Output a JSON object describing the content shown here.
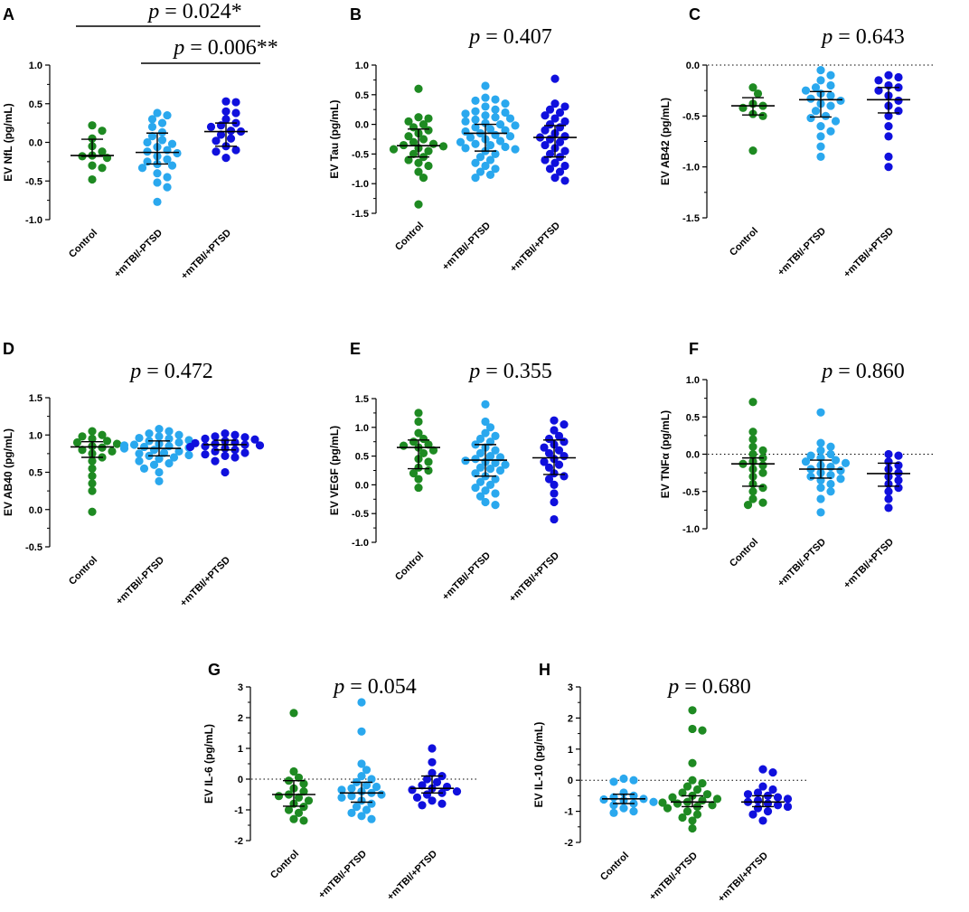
{
  "colors": {
    "control": "#1e8a22",
    "no_ptsd": "#2aa8ee",
    "ptsd": "#1010dd"
  },
  "chart_data": [
    {
      "panel": "A",
      "type": "scatter",
      "title": "",
      "ylabel": "EV NfL (pg/mL)",
      "ylim": [
        -1.0,
        1.0
      ],
      "ticks": [
        "1.0",
        "0.5",
        "0.0",
        "-0.5",
        "-1.0"
      ],
      "tick_values": [
        1.0,
        0.5,
        0.0,
        -0.5,
        -1.0
      ],
      "zero_line": false,
      "categories": [
        "Control",
        "+mTBI/-PTSD",
        "+mTBI/+PTSD"
      ],
      "annotations": [
        {
          "text": "p = 0.024*",
          "from": 0,
          "to": 2
        },
        {
          "text": "p = 0.006**",
          "from": 1,
          "to": 2
        }
      ],
      "summary": [
        {
          "median": -0.17,
          "q1": -0.18,
          "q3": 0.04
        },
        {
          "median": -0.13,
          "q1": -0.28,
          "q3": 0.12
        },
        {
          "median": 0.14,
          "q1": -0.05,
          "q3": 0.25
        }
      ],
      "series": [
        {
          "name": "Control",
          "color": "control",
          "values": [
            0.22,
            0.15,
            0.05,
            -0.05,
            -0.12,
            -0.17,
            -0.18,
            -0.2,
            -0.3,
            -0.33,
            -0.48
          ]
        },
        {
          "name": "+mTBI/-PTSD",
          "color": "no_ptsd",
          "values": [
            0.38,
            0.35,
            0.3,
            0.25,
            0.2,
            0.13,
            0.08,
            0.03,
            0.0,
            -0.02,
            -0.06,
            -0.1,
            -0.12,
            -0.14,
            -0.18,
            -0.22,
            -0.25,
            -0.28,
            -0.3,
            -0.33,
            -0.4,
            -0.45,
            -0.52,
            -0.58,
            -0.77
          ]
        },
        {
          "name": "+mTBI/+PTSD",
          "color": "ptsd",
          "values": [
            0.53,
            0.52,
            0.4,
            0.38,
            0.3,
            0.25,
            0.22,
            0.2,
            0.15,
            0.14,
            0.1,
            0.05,
            0.02,
            -0.05,
            -0.1,
            -0.12,
            -0.2
          ]
        }
      ]
    },
    {
      "panel": "B",
      "type": "scatter",
      "title": "p = 0.407",
      "ylabel": "EV Tau (pg/mL)",
      "ylim": [
        -1.5,
        1.0
      ],
      "ticks": [
        "1.0",
        "0.5",
        "0.0",
        "-0.5",
        "-1.0",
        "-1.5"
      ],
      "tick_values": [
        1.0,
        0.5,
        0.0,
        -0.5,
        -1.0,
        -1.5
      ],
      "zero_line": false,
      "categories": [
        "Control",
        "+mTBI/-PTSD",
        "+mTBI/+PTSD"
      ],
      "annotations": [],
      "summary": [
        {
          "median": -0.36,
          "q1": -0.55,
          "q3": -0.08
        },
        {
          "median": -0.15,
          "q1": -0.45,
          "q3": 0.0
        },
        {
          "median": -0.22,
          "q1": -0.55,
          "q3": -0.02
        }
      ],
      "series": [
        {
          "name": "Control",
          "color": "control",
          "values": [
            0.6,
            0.12,
            0.1,
            0.05,
            0.0,
            -0.05,
            -0.1,
            -0.15,
            -0.2,
            -0.25,
            -0.3,
            -0.33,
            -0.35,
            -0.37,
            -0.4,
            -0.42,
            -0.45,
            -0.5,
            -0.55,
            -0.6,
            -0.65,
            -0.7,
            -0.8,
            -0.9,
            -1.35
          ]
        },
        {
          "name": "+mTBI/-PTSD",
          "color": "no_ptsd",
          "values": [
            0.65,
            0.45,
            0.42,
            0.4,
            0.35,
            0.3,
            0.25,
            0.22,
            0.2,
            0.18,
            0.15,
            0.12,
            0.1,
            0.08,
            0.05,
            0.02,
            0.0,
            -0.02,
            -0.05,
            -0.08,
            -0.1,
            -0.12,
            -0.15,
            -0.18,
            -0.2,
            -0.22,
            -0.25,
            -0.28,
            -0.3,
            -0.33,
            -0.35,
            -0.38,
            -0.4,
            -0.42,
            -0.45,
            -0.5,
            -0.55,
            -0.6,
            -0.65,
            -0.7,
            -0.75,
            -0.8,
            -0.85,
            -0.9
          ]
        },
        {
          "name": "+mTBI/+PTSD",
          "color": "ptsd",
          "values": [
            0.77,
            0.35,
            0.3,
            0.25,
            0.2,
            0.15,
            0.1,
            0.05,
            0.0,
            -0.05,
            -0.1,
            -0.15,
            -0.2,
            -0.22,
            -0.25,
            -0.3,
            -0.35,
            -0.4,
            -0.45,
            -0.5,
            -0.55,
            -0.6,
            -0.65,
            -0.7,
            -0.75,
            -0.8,
            -0.9,
            -0.95
          ]
        }
      ]
    },
    {
      "panel": "C",
      "type": "scatter",
      "title": "p = 0.643",
      "ylabel": "EV AB42 (pg/mL)",
      "ylim": [
        -1.5,
        0.0
      ],
      "ticks": [
        "0.0",
        "-0.5",
        "-1.0",
        "-1.5"
      ],
      "tick_values": [
        0.0,
        -0.5,
        -1.0,
        -1.5
      ],
      "zero_line": true,
      "categories": [
        "Control",
        "+mTBI/-PTSD",
        "+mTBI/+PTSD"
      ],
      "annotations": [],
      "summary": [
        {
          "median": -0.4,
          "q1": -0.49,
          "q3": -0.32
        },
        {
          "median": -0.34,
          "q1": -0.51,
          "q3": -0.26
        },
        {
          "median": -0.34,
          "q1": -0.47,
          "q3": -0.22
        }
      ],
      "series": [
        {
          "name": "Control",
          "color": "control",
          "values": [
            -0.22,
            -0.28,
            -0.38,
            -0.4,
            -0.42,
            -0.48,
            -0.5,
            -0.84
          ]
        },
        {
          "name": "+mTBI/-PTSD",
          "color": "no_ptsd",
          "values": [
            -0.05,
            -0.1,
            -0.15,
            -0.2,
            -0.22,
            -0.25,
            -0.28,
            -0.3,
            -0.33,
            -0.35,
            -0.38,
            -0.4,
            -0.45,
            -0.5,
            -0.52,
            -0.55,
            -0.6,
            -0.65,
            -0.7,
            -0.8,
            -0.9
          ]
        },
        {
          "name": "+mTBI/+PTSD",
          "color": "ptsd",
          "values": [
            -0.1,
            -0.12,
            -0.15,
            -0.2,
            -0.22,
            -0.25,
            -0.3,
            -0.35,
            -0.4,
            -0.45,
            -0.5,
            -0.6,
            -0.7,
            -0.9,
            -1.0
          ]
        }
      ]
    },
    {
      "panel": "D",
      "type": "scatter",
      "title": "p = 0.472",
      "ylabel": "EV AB40 (pg/mL)",
      "ylim": [
        -0.5,
        1.5
      ],
      "ticks": [
        "1.5",
        "1.0",
        "0.5",
        "0.0",
        "-0.5"
      ],
      "tick_values": [
        1.5,
        1.0,
        0.5,
        0.0,
        -0.5
      ],
      "zero_line": false,
      "categories": [
        "Control",
        "+mTBI/-PTSD",
        "+mTBI/+PTSD"
      ],
      "annotations": [],
      "summary": [
        {
          "median": 0.84,
          "q1": 0.7,
          "q3": 0.91
        },
        {
          "median": 0.82,
          "q1": 0.72,
          "q3": 0.92
        },
        {
          "median": 0.87,
          "q1": 0.8,
          "q3": 0.93
        }
      ],
      "series": [
        {
          "name": "Control",
          "color": "control",
          "values": [
            1.05,
            1.0,
            0.98,
            0.95,
            0.92,
            0.9,
            0.88,
            0.85,
            0.83,
            0.8,
            0.78,
            0.75,
            0.7,
            0.65,
            0.55,
            0.45,
            0.35,
            0.25,
            -0.03
          ]
        },
        {
          "name": "+mTBI/-PTSD",
          "color": "no_ptsd",
          "values": [
            1.08,
            1.05,
            1.02,
            1.0,
            0.98,
            0.96,
            0.95,
            0.93,
            0.92,
            0.9,
            0.88,
            0.87,
            0.86,
            0.85,
            0.84,
            0.83,
            0.82,
            0.8,
            0.78,
            0.76,
            0.75,
            0.73,
            0.72,
            0.7,
            0.68,
            0.65,
            0.62,
            0.6,
            0.55,
            0.5,
            0.38
          ]
        },
        {
          "name": "+mTBI/+PTSD",
          "color": "ptsd",
          "values": [
            1.02,
            1.0,
            0.98,
            0.97,
            0.95,
            0.94,
            0.92,
            0.9,
            0.89,
            0.88,
            0.87,
            0.86,
            0.85,
            0.84,
            0.82,
            0.8,
            0.78,
            0.76,
            0.74,
            0.72,
            0.7,
            0.65,
            0.5
          ]
        }
      ]
    },
    {
      "panel": "E",
      "type": "scatter",
      "title": "p = 0.355",
      "ylabel": "EV VEGF (pg/mL)",
      "ylim": [
        -1.0,
        1.5
      ],
      "ticks": [
        "1.5",
        "1.0",
        "0.5",
        "0.0",
        "-0.5",
        "-1.0"
      ],
      "tick_values": [
        1.5,
        1.0,
        0.5,
        0.0,
        -0.5,
        -1.0
      ],
      "zero_line": false,
      "categories": [
        "Control",
        "+mTBI/-PTSD",
        "+mTBI/+PTSD"
      ],
      "annotations": [],
      "summary": [
        {
          "median": 0.65,
          "q1": 0.28,
          "q3": 0.78
        },
        {
          "median": 0.43,
          "q1": 0.15,
          "q3": 0.7
        },
        {
          "median": 0.47,
          "q1": 0.18,
          "q3": 0.78
        }
      ],
      "series": [
        {
          "name": "Control",
          "color": "control",
          "values": [
            1.25,
            1.1,
            0.9,
            0.8,
            0.75,
            0.7,
            0.68,
            0.65,
            0.6,
            0.55,
            0.45,
            0.4,
            0.3,
            0.25,
            0.2,
            0.1,
            -0.05
          ]
        },
        {
          "name": "+mTBI/-PTSD",
          "color": "no_ptsd",
          "values": [
            1.4,
            1.1,
            1.0,
            0.9,
            0.85,
            0.8,
            0.75,
            0.7,
            0.65,
            0.6,
            0.55,
            0.5,
            0.48,
            0.45,
            0.42,
            0.4,
            0.38,
            0.35,
            0.3,
            0.28,
            0.25,
            0.2,
            0.15,
            0.1,
            0.05,
            0.0,
            -0.05,
            -0.1,
            -0.15,
            -0.2,
            -0.3,
            -0.35
          ]
        },
        {
          "name": "+mTBI/+PTSD",
          "color": "ptsd",
          "values": [
            1.12,
            1.05,
            0.95,
            0.85,
            0.8,
            0.75,
            0.7,
            0.65,
            0.6,
            0.55,
            0.5,
            0.45,
            0.4,
            0.35,
            0.3,
            0.2,
            0.15,
            0.1,
            0.0,
            -0.15,
            -0.3,
            -0.6
          ]
        }
      ]
    },
    {
      "panel": "F",
      "type": "scatter",
      "title": "p = 0.860",
      "ylabel": "EV TNFα (pg/mL)",
      "ylim": [
        -1.0,
        1.0
      ],
      "ticks": [
        "1.0",
        "0.5",
        "0.0",
        "-0.5",
        "-1.0"
      ],
      "tick_values": [
        1.0,
        0.5,
        0.0,
        -0.5,
        -1.0
      ],
      "zero_line": true,
      "categories": [
        "Control",
        "+mTBI/-PTSD",
        "+mTBI/+PTSD"
      ],
      "annotations": [],
      "summary": [
        {
          "median": -0.13,
          "q1": -0.43,
          "q3": -0.05
        },
        {
          "median": -0.2,
          "q1": -0.32,
          "q3": -0.08
        },
        {
          "median": -0.26,
          "q1": -0.43,
          "q3": -0.12
        }
      ],
      "series": [
        {
          "name": "Control",
          "color": "control",
          "values": [
            0.7,
            0.3,
            0.2,
            0.1,
            0.05,
            0.0,
            -0.05,
            -0.1,
            -0.13,
            -0.15,
            -0.2,
            -0.25,
            -0.3,
            -0.4,
            -0.45,
            -0.5,
            -0.6,
            -0.65,
            -0.68
          ]
        },
        {
          "name": "+mTBI/-PTSD",
          "color": "no_ptsd",
          "values": [
            0.56,
            0.15,
            0.1,
            0.05,
            0.0,
            -0.02,
            -0.05,
            -0.08,
            -0.1,
            -0.12,
            -0.15,
            -0.17,
            -0.2,
            -0.22,
            -0.25,
            -0.28,
            -0.3,
            -0.33,
            -0.35,
            -0.4,
            -0.45,
            -0.5,
            -0.6,
            -0.78
          ]
        },
        {
          "name": "+mTBI/+PTSD",
          "color": "ptsd",
          "values": [
            0.0,
            -0.02,
            -0.1,
            -0.15,
            -0.2,
            -0.25,
            -0.3,
            -0.35,
            -0.4,
            -0.45,
            -0.5,
            -0.6,
            -0.72
          ]
        }
      ]
    },
    {
      "panel": "G",
      "type": "scatter",
      "title": "p = 0.054",
      "ylabel": "EV IL-6 (pg/mL)",
      "ylim": [
        -2,
        3
      ],
      "ticks": [
        "3",
        "2",
        "1",
        "0",
        "-1",
        "-2"
      ],
      "tick_values": [
        3,
        2,
        1,
        0,
        -1,
        -2
      ],
      "zero_line": true,
      "categories": [
        "Control",
        "+mTBI/-PTSD",
        "+mTBI/+PTSD"
      ],
      "annotations": [],
      "summary": [
        {
          "median": -0.5,
          "q1": -0.88,
          "q3": -0.05
        },
        {
          "median": -0.45,
          "q1": -0.75,
          "q3": -0.1
        },
        {
          "median": -0.3,
          "q1": -0.45,
          "q3": 0.1
        }
      ],
      "series": [
        {
          "name": "Control",
          "color": "control",
          "values": [
            2.15,
            0.25,
            0.05,
            -0.05,
            -0.15,
            -0.3,
            -0.4,
            -0.5,
            -0.55,
            -0.6,
            -0.7,
            -0.8,
            -0.9,
            -1.0,
            -1.1,
            -1.3,
            -1.35
          ]
        },
        {
          "name": "+mTBI/-PTSD",
          "color": "no_ptsd",
          "values": [
            2.5,
            1.55,
            0.5,
            0.3,
            0.1,
            0.0,
            -0.1,
            -0.2,
            -0.25,
            -0.3,
            -0.35,
            -0.4,
            -0.45,
            -0.5,
            -0.55,
            -0.6,
            -0.7,
            -0.8,
            -0.9,
            -1.0,
            -1.1,
            -1.2,
            -1.3
          ]
        },
        {
          "name": "+mTBI/+PTSD",
          "color": "ptsd",
          "values": [
            1.0,
            0.55,
            0.2,
            0.1,
            0.0,
            -0.1,
            -0.2,
            -0.25,
            -0.3,
            -0.35,
            -0.4,
            -0.45,
            -0.5,
            -0.6,
            -0.7,
            -0.8,
            -0.85
          ]
        }
      ]
    },
    {
      "panel": "H",
      "type": "scatter",
      "title": "p = 0.680",
      "ylabel": "EV IL-10 (pg/mL)",
      "ylim": [
        -2,
        3
      ],
      "ticks": [
        "3",
        "2",
        "1",
        "0",
        "-1",
        "-2"
      ],
      "tick_values": [
        3,
        2,
        1,
        0,
        -1,
        -2
      ],
      "zero_line": true,
      "categories": [
        "Control",
        "+mTBI/-PTSD",
        "+mTBI/+PTSD"
      ],
      "annotations": [],
      "summary": [
        {
          "median": -0.6,
          "q1": -0.75,
          "q3": -0.45
        },
        {
          "median": -0.7,
          "q1": -0.85,
          "q3": -0.5
        },
        {
          "median": -0.7,
          "q1": -0.85,
          "q3": -0.5
        }
      ],
      "series": [
        {
          "name": "Control",
          "color": "no_ptsd",
          "values": [
            0.05,
            0.0,
            -0.05,
            -0.4,
            -0.5,
            -0.55,
            -0.6,
            -0.62,
            -0.65,
            -0.7,
            -0.75,
            -0.8,
            -0.9,
            -1.0,
            -1.05
          ]
        },
        {
          "name": "+mTBI/-PTSD",
          "color": "control",
          "values": [
            2.25,
            1.65,
            1.6,
            0.55,
            0.0,
            -0.1,
            -0.2,
            -0.3,
            -0.4,
            -0.45,
            -0.5,
            -0.55,
            -0.6,
            -0.65,
            -0.7,
            -0.72,
            -0.75,
            -0.8,
            -0.85,
            -0.9,
            -1.0,
            -1.1,
            -1.2,
            -1.3,
            -1.55
          ]
        },
        {
          "name": "+mTBI/+PTSD",
          "color": "ptsd",
          "values": [
            0.35,
            0.25,
            -0.2,
            -0.3,
            -0.4,
            -0.45,
            -0.5,
            -0.55,
            -0.6,
            -0.65,
            -0.7,
            -0.75,
            -0.8,
            -0.85,
            -0.9,
            -1.0,
            -1.1,
            -1.3
          ]
        }
      ]
    }
  ]
}
